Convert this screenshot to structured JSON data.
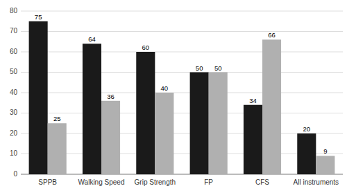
{
  "chart_data": {
    "type": "bar",
    "categories": [
      "SPPB",
      "Walking Speed",
      "Grip Strength",
      "FP",
      "CFS",
      "All instruments"
    ],
    "series": [
      {
        "color": "#1a1a1a",
        "values": [
          75,
          64,
          60,
          50,
          34,
          20
        ]
      },
      {
        "color": "#b0b0b0",
        "values": [
          25,
          36,
          40,
          50,
          66,
          9
        ]
      }
    ],
    "ylim": [
      0,
      80
    ],
    "yticks": [
      0,
      10,
      20,
      30,
      40,
      50,
      60,
      70,
      80
    ],
    "grid": true,
    "data_labels": true
  }
}
